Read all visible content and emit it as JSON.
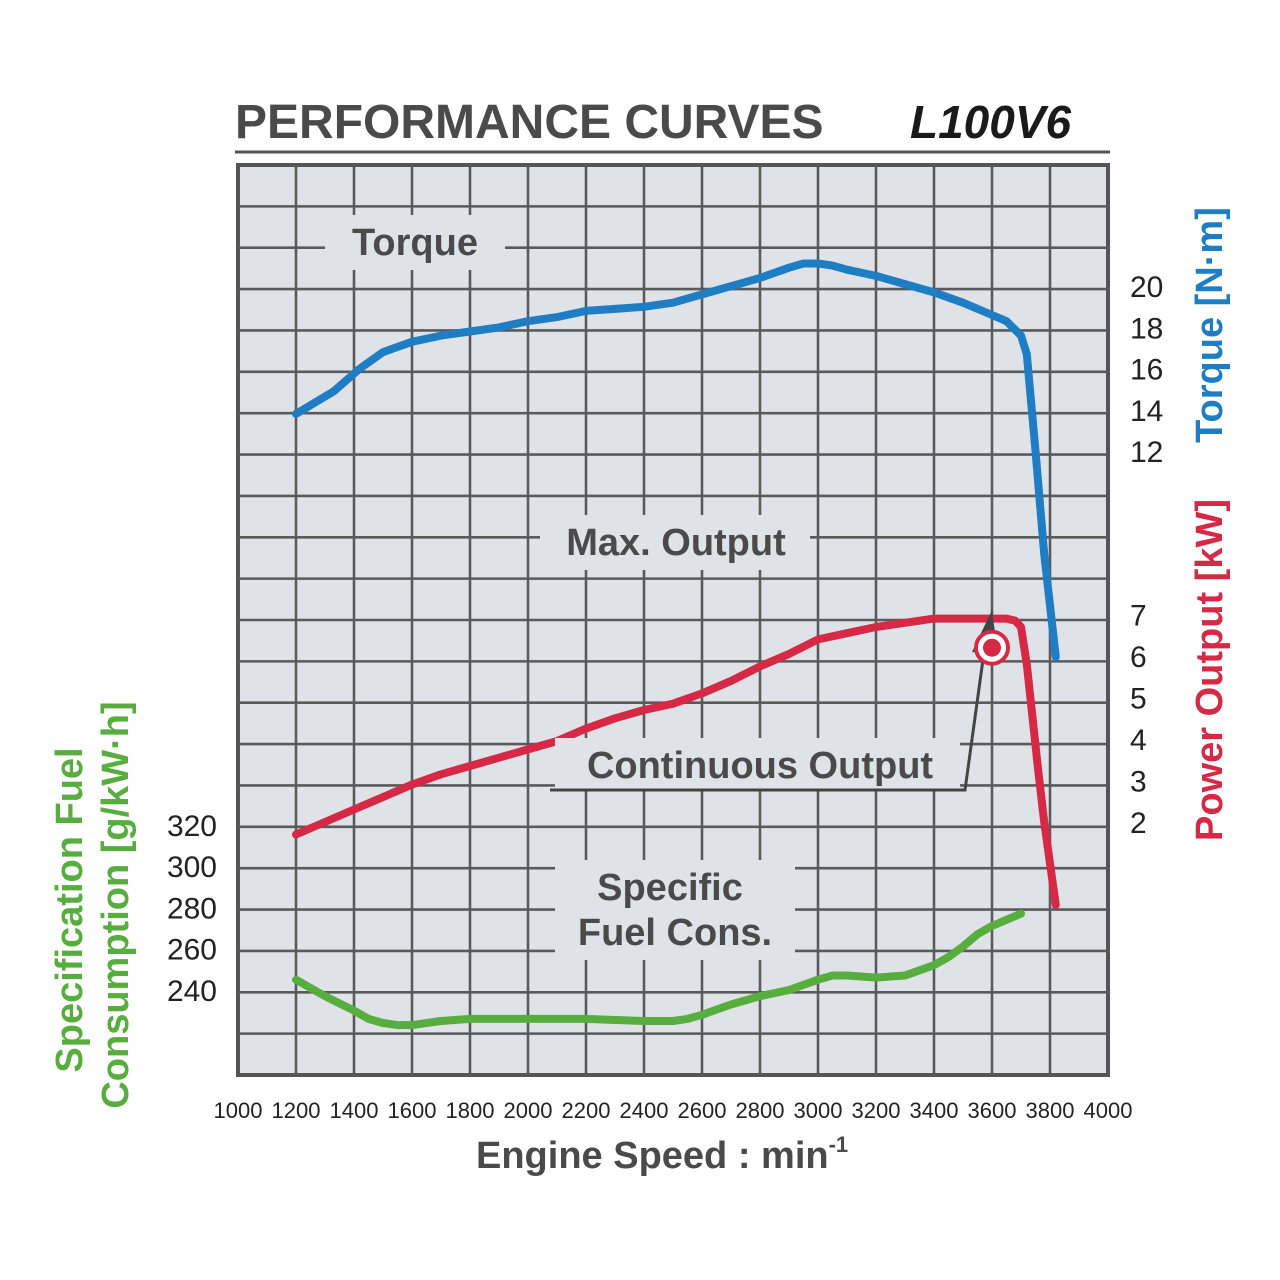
{
  "chart_data": {
    "type": "line",
    "title": "PERFORMANCE CURVES",
    "model": "L100V6",
    "xlabel": "Engine Speed : min",
    "xlabel_sup": "-1",
    "xlim": [
      1000,
      4000
    ],
    "xticks": [
      1000,
      1200,
      1400,
      1600,
      1800,
      2000,
      2200,
      2400,
      2600,
      2800,
      3000,
      3200,
      3400,
      3600,
      3800,
      4000
    ],
    "grid": true,
    "axes": {
      "torque": {
        "label_name": "Torque",
        "label_unit": "[N·m]",
        "side": "right",
        "ticks": [
          12,
          14,
          16,
          18,
          20
        ],
        "color": "#1f7dc4"
      },
      "power": {
        "label_name": "Power Output",
        "label_unit": "[kW]",
        "side": "right",
        "ticks": [
          2,
          3,
          4,
          5,
          6,
          7
        ],
        "color": "#d62945"
      },
      "fuel": {
        "label_line1": "Specification Fuel",
        "label_line2": "Consumption [g/kW·h]",
        "side": "left",
        "ticks": [
          240,
          260,
          280,
          300,
          320
        ],
        "color": "#57ae3e"
      }
    },
    "series": [
      {
        "name": "Torque",
        "axis": "torque",
        "color": "#1f7dc4",
        "x": [
          1200,
          1330,
          1420,
          1500,
          1600,
          1700,
          1800,
          1900,
          2000,
          2100,
          2200,
          2300,
          2400,
          2500,
          2600,
          2700,
          2800,
          2900,
          2950,
          3000,
          3050,
          3100,
          3200,
          3300,
          3400,
          3500,
          3600,
          3650,
          3700,
          3720,
          3750,
          3780,
          3800,
          3820
        ],
        "values": [
          13.8,
          14.9,
          16.0,
          16.8,
          17.3,
          17.6,
          17.8,
          18.0,
          18.3,
          18.5,
          18.8,
          18.9,
          19.0,
          19.2,
          19.6,
          20.0,
          20.4,
          20.9,
          21.1,
          21.1,
          21.0,
          20.8,
          20.5,
          20.1,
          19.7,
          19.2,
          18.6,
          18.3,
          17.6,
          16.7,
          12.0,
          7.0,
          4.5,
          2.0
        ]
      },
      {
        "name": "Max. Output",
        "axis": "power",
        "color": "#d62945",
        "x": [
          1200,
          1300,
          1400,
          1500,
          1600,
          1700,
          1800,
          1900,
          2000,
          2100,
          2200,
          2300,
          2400,
          2500,
          2600,
          2700,
          2800,
          2900,
          3000,
          3100,
          3200,
          3300,
          3400,
          3500,
          3600,
          3650,
          3680,
          3700,
          3720,
          3740,
          3760,
          3780,
          3800,
          3820
        ],
        "values": [
          1.7,
          2.0,
          2.3,
          2.6,
          2.9,
          3.15,
          3.35,
          3.55,
          3.75,
          3.95,
          4.25,
          4.5,
          4.7,
          4.85,
          5.1,
          5.4,
          5.75,
          6.05,
          6.4,
          6.55,
          6.7,
          6.8,
          6.9,
          6.9,
          6.9,
          6.9,
          6.85,
          6.7,
          5.8,
          4.5,
          3.2,
          2.0,
          1.0,
          0.0
        ]
      },
      {
        "name": "Specific Fuel Cons.",
        "axis": "fuel",
        "color": "#57ae3e",
        "x": [
          1200,
          1300,
          1400,
          1450,
          1500,
          1550,
          1600,
          1700,
          1800,
          2000,
          2200,
          2400,
          2500,
          2550,
          2600,
          2700,
          2800,
          2900,
          3000,
          3050,
          3100,
          3200,
          3300,
          3400,
          3450,
          3500,
          3550,
          3600,
          3650,
          3700
        ],
        "values": [
          245,
          237,
          230,
          226,
          224,
          223,
          223,
          225,
          226,
          226,
          226,
          225,
          225,
          226,
          228,
          233,
          237,
          240,
          245,
          247,
          247,
          246,
          247,
          252,
          256,
          261,
          267,
          271,
          274,
          277
        ]
      }
    ],
    "annotations": {
      "torque": "Torque",
      "max_output": "Max. Output",
      "continuous_output": "Continuous Output",
      "fuel_line1": "Specific",
      "fuel_line2": "Fuel Cons."
    },
    "continuous_point": {
      "x": 3600,
      "value": 6.2
    }
  }
}
